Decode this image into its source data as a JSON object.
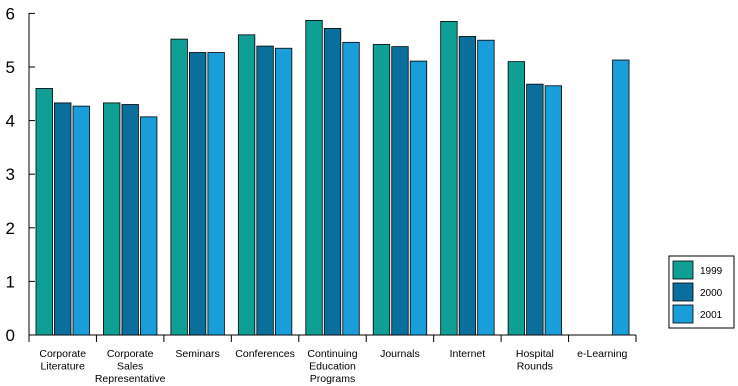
{
  "chart_data": {
    "type": "bar",
    "categories": [
      [
        "Corporate",
        "Literature"
      ],
      [
        "Corporate",
        "Sales",
        "Representative"
      ],
      [
        "Seminars"
      ],
      [
        "Conferences"
      ],
      [
        "Continuing",
        "Education",
        "Programs"
      ],
      [
        "Journals"
      ],
      [
        "Internet"
      ],
      [
        "Hospital",
        "Rounds"
      ],
      [
        "e-Learning"
      ]
    ],
    "series": [
      {
        "name": "1999",
        "color": "#0f9f95",
        "values": [
          4.6,
          4.33,
          5.52,
          5.6,
          5.87,
          5.42,
          5.85,
          5.1,
          null
        ]
      },
      {
        "name": "2000",
        "color": "#0a6f9c",
        "values": [
          4.33,
          4.3,
          5.27,
          5.39,
          5.72,
          5.38,
          5.57,
          4.68,
          null
        ]
      },
      {
        "name": "2001",
        "color": "#1a9ed9",
        "values": [
          4.27,
          4.07,
          5.27,
          5.35,
          5.46,
          5.11,
          5.5,
          4.65,
          5.13
        ]
      }
    ],
    "yticks": [
      "0",
      "1",
      "2",
      "3",
      "4",
      "5",
      "6"
    ],
    "ylim": [
      0,
      6.5
    ],
    "grid": false,
    "legend_position": "right"
  }
}
